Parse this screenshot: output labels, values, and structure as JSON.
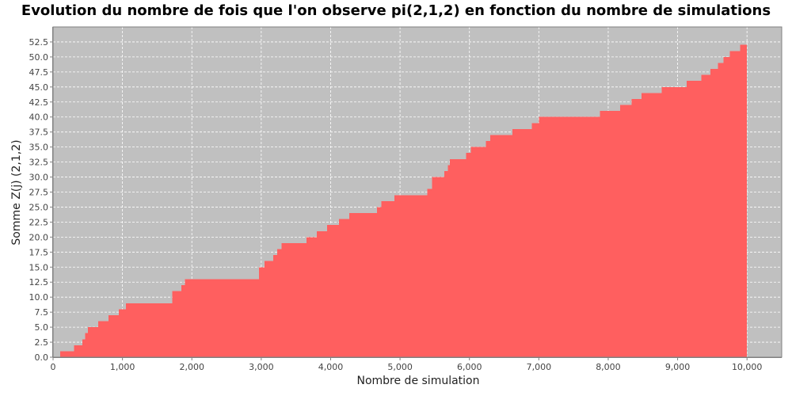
{
  "chart_data": {
    "type": "bar",
    "title": "Evolution du nombre de fois que l'on observe pi(2,1,2) en fonction du nombre de simulations",
    "xlabel": "Nombre de simulation",
    "ylabel": "Somme Z(j) (2,1,2)",
    "xlim": [
      0,
      10500
    ],
    "ylim": [
      0,
      55
    ],
    "x_ticks": [
      0,
      1000,
      2000,
      3000,
      4000,
      5000,
      6000,
      7000,
      8000,
      9000,
      10000
    ],
    "x_tick_labels": [
      "0",
      "1,000",
      "2,000",
      "3,000",
      "4,000",
      "5,000",
      "6,000",
      "7,000",
      "8,000",
      "9,000",
      "10,000"
    ],
    "y_ticks": [
      0,
      2.5,
      5,
      7.5,
      10,
      12.5,
      15,
      17.5,
      20,
      22.5,
      25,
      27.5,
      30,
      32.5,
      35,
      37.5,
      40,
      42.5,
      45,
      47.5,
      50,
      52.5
    ],
    "y_tick_labels": [
      "0.0",
      "2.5",
      "5.0",
      "7.5",
      "10.0",
      "12.5",
      "15.0",
      "17.5",
      "20.0",
      "22.5",
      "25.0",
      "27.5",
      "30.0",
      "32.5",
      "35.0",
      "37.5",
      "40.0",
      "42.5",
      "45.0",
      "47.5",
      "50.0",
      "52.5"
    ],
    "grid": true,
    "legend": "none",
    "background_color": "#c0c0c0",
    "bar_color": "#ff5f5f",
    "steps": [
      {
        "x_start": 100,
        "x_end": 300,
        "value": 1
      },
      {
        "x_start": 300,
        "x_end": 420,
        "value": 2
      },
      {
        "x_start": 420,
        "x_end": 460,
        "value": 3
      },
      {
        "x_start": 460,
        "x_end": 500,
        "value": 4
      },
      {
        "x_start": 500,
        "x_end": 650,
        "value": 5
      },
      {
        "x_start": 650,
        "x_end": 800,
        "value": 6
      },
      {
        "x_start": 800,
        "x_end": 950,
        "value": 7
      },
      {
        "x_start": 950,
        "x_end": 1050,
        "value": 8
      },
      {
        "x_start": 1050,
        "x_end": 1720,
        "value": 9
      },
      {
        "x_start": 1720,
        "x_end": 1850,
        "value": 11
      },
      {
        "x_start": 1850,
        "x_end": 1900,
        "value": 12
      },
      {
        "x_start": 1900,
        "x_end": 2970,
        "value": 13
      },
      {
        "x_start": 2970,
        "x_end": 3050,
        "value": 15
      },
      {
        "x_start": 3050,
        "x_end": 3170,
        "value": 16
      },
      {
        "x_start": 3170,
        "x_end": 3230,
        "value": 17
      },
      {
        "x_start": 3230,
        "x_end": 3290,
        "value": 18
      },
      {
        "x_start": 3290,
        "x_end": 3650,
        "value": 19
      },
      {
        "x_start": 3650,
        "x_end": 3800,
        "value": 20
      },
      {
        "x_start": 3800,
        "x_end": 3950,
        "value": 21
      },
      {
        "x_start": 3950,
        "x_end": 4120,
        "value": 22
      },
      {
        "x_start": 4120,
        "x_end": 4270,
        "value": 23
      },
      {
        "x_start": 4270,
        "x_end": 4670,
        "value": 24
      },
      {
        "x_start": 4670,
        "x_end": 4730,
        "value": 25
      },
      {
        "x_start": 4730,
        "x_end": 4920,
        "value": 26
      },
      {
        "x_start": 4920,
        "x_end": 5390,
        "value": 27
      },
      {
        "x_start": 5390,
        "x_end": 5460,
        "value": 28
      },
      {
        "x_start": 5460,
        "x_end": 5640,
        "value": 30
      },
      {
        "x_start": 5640,
        "x_end": 5690,
        "value": 31
      },
      {
        "x_start": 5690,
        "x_end": 5720,
        "value": 32
      },
      {
        "x_start": 5720,
        "x_end": 5950,
        "value": 33
      },
      {
        "x_start": 5950,
        "x_end": 6020,
        "value": 34
      },
      {
        "x_start": 6020,
        "x_end": 6240,
        "value": 35
      },
      {
        "x_start": 6240,
        "x_end": 6300,
        "value": 36
      },
      {
        "x_start": 6300,
        "x_end": 6620,
        "value": 37
      },
      {
        "x_start": 6620,
        "x_end": 6900,
        "value": 38
      },
      {
        "x_start": 6900,
        "x_end": 7000,
        "value": 39
      },
      {
        "x_start": 7000,
        "x_end": 7880,
        "value": 40
      },
      {
        "x_start": 7880,
        "x_end": 8170,
        "value": 41
      },
      {
        "x_start": 8170,
        "x_end": 8340,
        "value": 42
      },
      {
        "x_start": 8340,
        "x_end": 8480,
        "value": 43
      },
      {
        "x_start": 8480,
        "x_end": 8770,
        "value": 44
      },
      {
        "x_start": 8770,
        "x_end": 9130,
        "value": 45
      },
      {
        "x_start": 9130,
        "x_end": 9340,
        "value": 46
      },
      {
        "x_start": 9340,
        "x_end": 9470,
        "value": 47
      },
      {
        "x_start": 9470,
        "x_end": 9580,
        "value": 48
      },
      {
        "x_start": 9580,
        "x_end": 9660,
        "value": 49
      },
      {
        "x_start": 9660,
        "x_end": 9750,
        "value": 50
      },
      {
        "x_start": 9750,
        "x_end": 9900,
        "value": 51
      },
      {
        "x_start": 9900,
        "x_end": 10000,
        "value": 52
      }
    ]
  }
}
